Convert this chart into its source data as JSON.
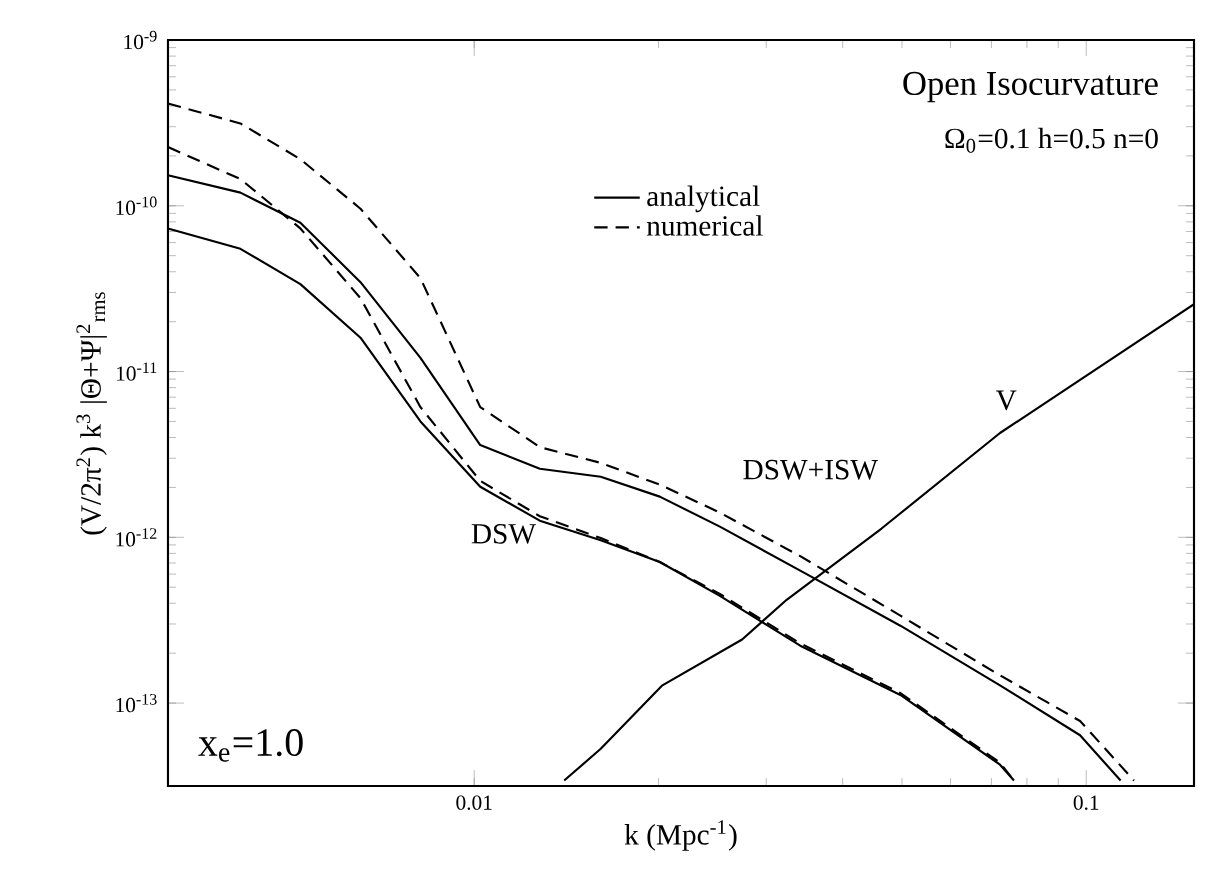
{
  "chart_data": {
    "type": "line",
    "title": "Open Isocurvature",
    "subtitle": "Ω$_{0}$=0.1 h=0.5 n=0",
    "xlabel": "k (Mpc$^{-1}$)",
    "ylabel": "(V/2π$^{2}$) k$^{3}$ |Θ+Ψ|$^{2}$$_{rms}$",
    "log": "xy",
    "grid": false,
    "legend": "top",
    "xlim": [
      0.00316,
      0.15
    ],
    "ylim": [
      3.16e-14,
      1e-09
    ],
    "xticks": [
      0.01,
      0.1
    ],
    "yticks": [
      {
        "value": 1e-13,
        "label": "10$^{-13}$"
      },
      {
        "value": 1e-12,
        "label": "10$^{-12}$"
      },
      {
        "value": 1e-11,
        "label": "10$^{-11}$"
      },
      {
        "value": 1e-10,
        "label": "10$^{-10}$"
      },
      {
        "value": 1e-09,
        "label": "10$^{-9}$"
      }
    ],
    "series": [
      {
        "name": "analytical",
        "color": "#000000",
        "line_style": "solid",
        "x": [
          0.00316,
          0.00415,
          0.0052,
          0.00652,
          0.00817,
          0.01023,
          0.0128,
          0.0161,
          0.0201,
          0.0252,
          0.0341,
          0.0497,
          0.0723,
          0.0977,
          0.1138
        ],
        "values": [
          1.53e-10,
          1.2e-10,
          7.9e-11,
          3.46e-11,
          1.21e-11,
          3.6e-12,
          2.59e-12,
          2.32e-12,
          1.76e-12,
          1.16e-12,
          6.3e-13,
          2.93e-13,
          1.28e-13,
          6.4e-14,
          3.41e-14
        ]
      },
      {
        "name": "numerical",
        "color": "#000000",
        "line_style": "dashed",
        "x": [
          0.00316,
          0.00415,
          0.0052,
          0.00652,
          0.00817,
          0.01023,
          0.0128,
          0.0161,
          0.0201,
          0.0252,
          0.0341,
          0.0497,
          0.0723,
          0.0977,
          0.1197
        ],
        "values": [
          4.14e-10,
          3.14e-10,
          1.91e-10,
          9.6e-11,
          3.66e-11,
          6.1e-12,
          3.5e-12,
          2.81e-12,
          2.08e-12,
          1.41e-12,
          7.7e-13,
          3.37e-13,
          1.47e-13,
          7.8e-14,
          3.41e-14
        ]
      },
      {
        "color": "#000000",
        "line_style": "solid",
        "x": [
          0.00316,
          0.00415,
          0.0052,
          0.00652,
          0.00817,
          0.01023,
          0.0128,
          0.0161,
          0.0201,
          0.0252,
          0.0341,
          0.0497,
          0.0723,
          0.0762
        ],
        "values": [
          7.3e-11,
          5.5e-11,
          3.37e-11,
          1.6e-11,
          5e-12,
          2.02e-12,
          1.26e-12,
          9.6e-13,
          7.1e-13,
          4.43e-13,
          2.22e-13,
          1.12e-13,
          4.25e-14,
          3.41e-14
        ]
      },
      {
        "color": "#000000",
        "line_style": "dashed",
        "x": [
          0.00316,
          0.00415,
          0.0052,
          0.00652,
          0.00817,
          0.01023,
          0.0128,
          0.0161,
          0.0201,
          0.0252,
          0.0341,
          0.0497,
          0.0723,
          0.0762
        ],
        "values": [
          2.26e-10,
          1.45e-10,
          7.3e-11,
          2.77e-11,
          6.1e-12,
          2.19e-12,
          1.34e-12,
          9.9e-13,
          7.1e-13,
          4.56e-13,
          2.29e-13,
          1.15e-13,
          4.37e-14,
          3.41e-14
        ]
      },
      {
        "color": "#000000",
        "line_style": "solid",
        "x": [
          0.01403,
          0.0161,
          0.0203,
          0.0274,
          0.0324,
          0.0463,
          0.0723,
          0.0885,
          0.15
        ],
        "values": [
          3.41e-14,
          5.3e-14,
          1.28e-13,
          2.42e-13,
          4.2e-13,
          1.13e-12,
          4.26e-12,
          6.98e-12,
          2.55e-11
        ]
      }
    ],
    "annotations": [
      "DSW",
      "DSW+ISW",
      "V",
      "x$_{e}$=1.0"
    ]
  }
}
